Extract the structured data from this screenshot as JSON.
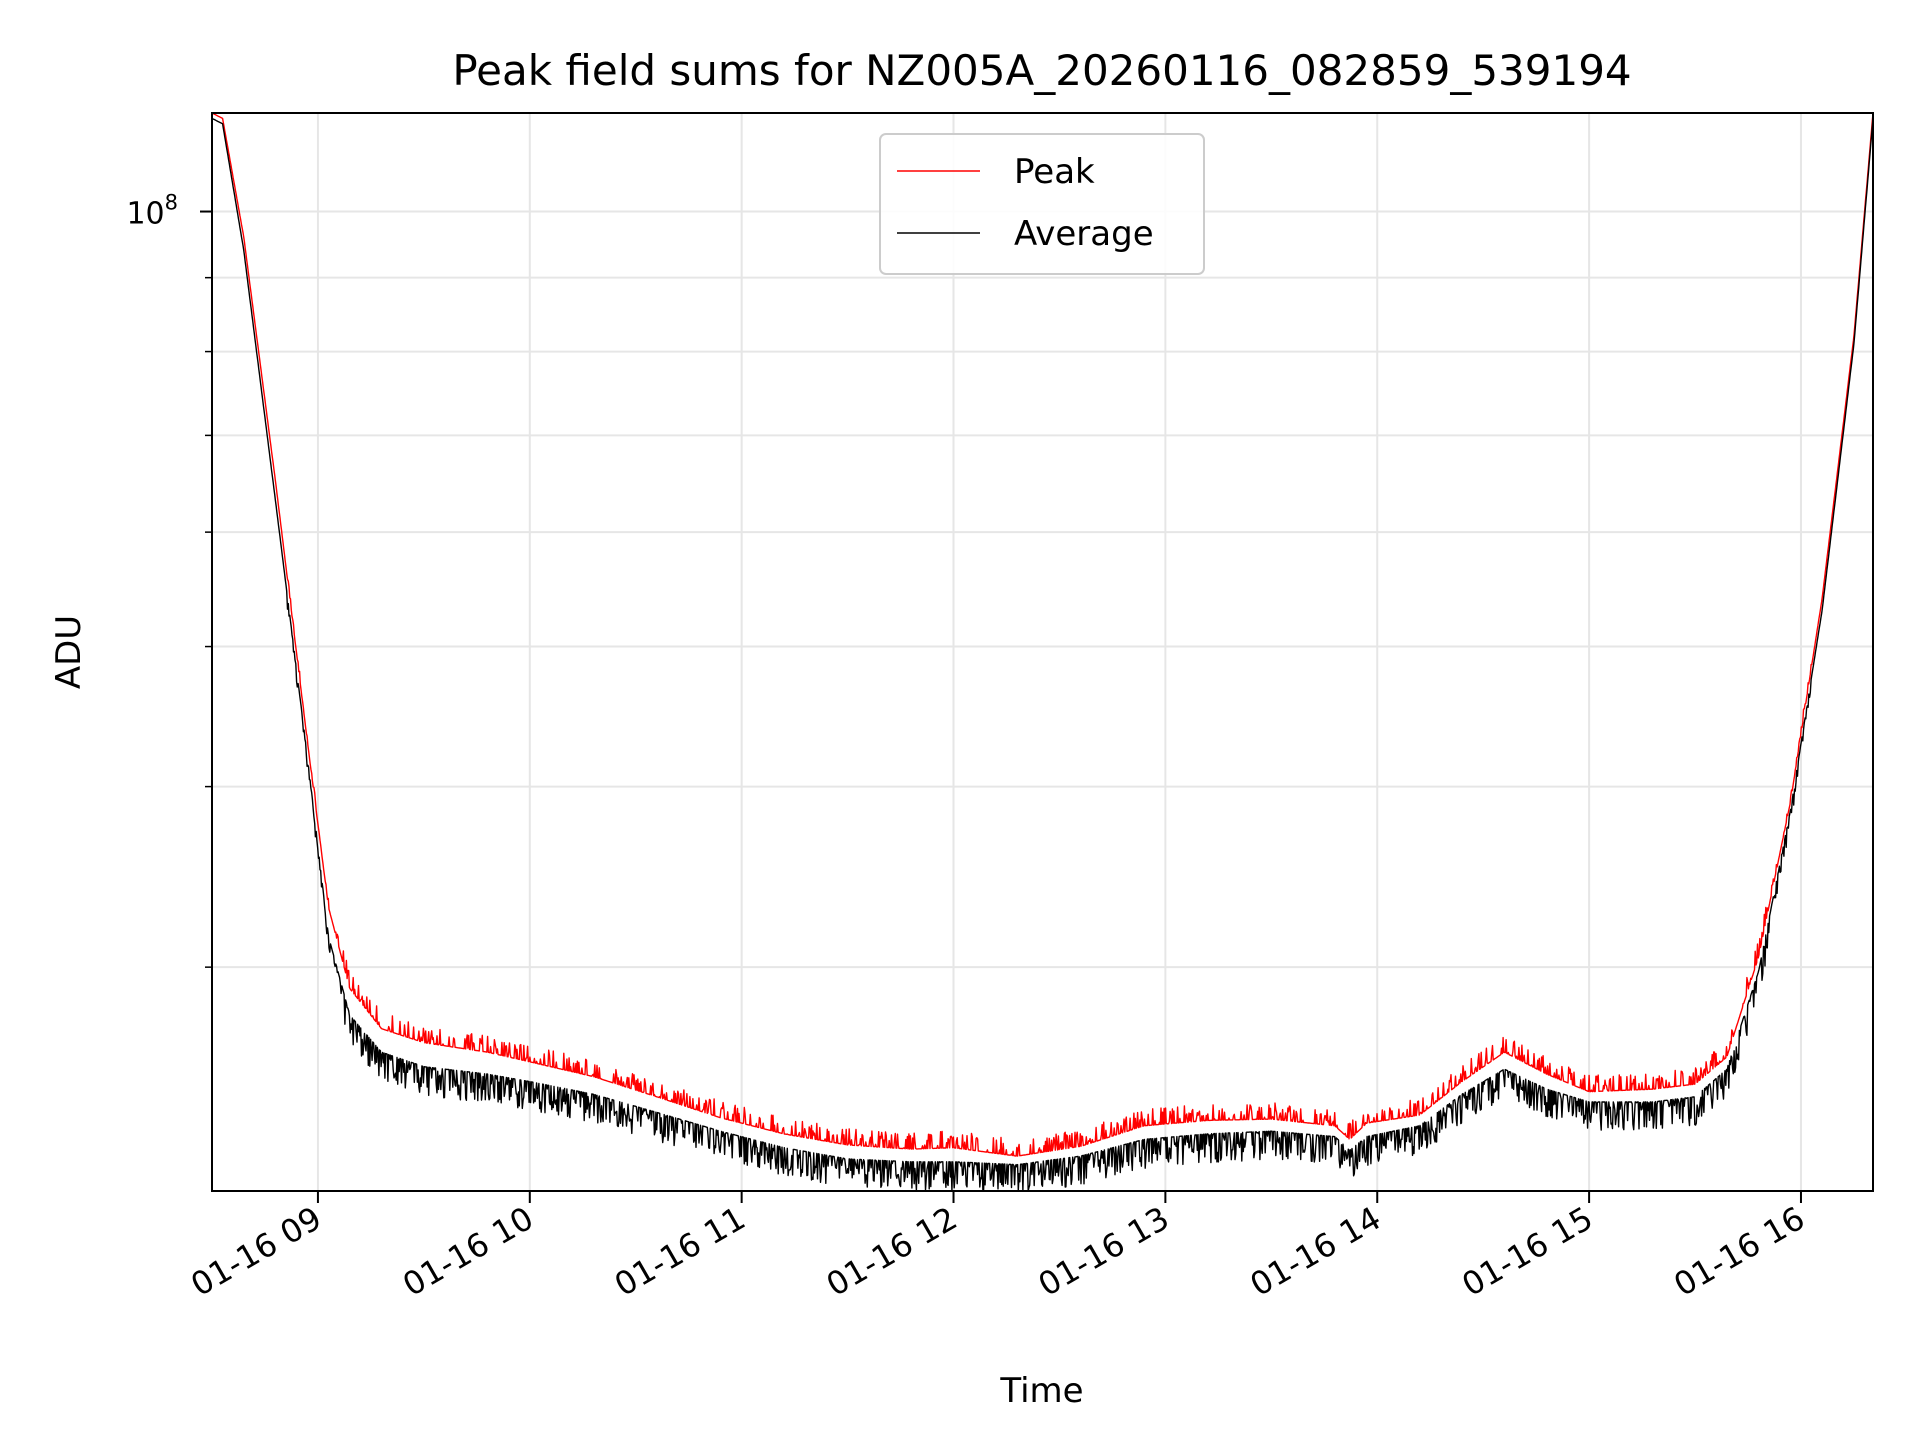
{
  "chart_data": {
    "type": "line",
    "title": "Peak field sums for NZ005A_20260116_082859_539194",
    "xlabel": "Time",
    "ylabel": "ADU",
    "x_unit": "hours since 01-16 08:00",
    "xlim": [
      8.5,
      16.34
    ],
    "yscale": "log",
    "ylim": [
      21000000.0,
      117000000.0
    ],
    "ytick_label": {
      "base": "10",
      "exponent": "8",
      "value": 100000000.0
    },
    "minor_y_ticks": [
      30000000.0,
      40000000.0,
      50000000.0,
      60000000.0,
      70000000.0,
      80000000.0,
      90000000.0
    ],
    "xticks": [
      {
        "value": 9,
        "label": "01-16 09"
      },
      {
        "value": 10,
        "label": "01-16 10"
      },
      {
        "value": 11,
        "label": "01-16 11"
      },
      {
        "value": 12,
        "label": "01-16 12"
      },
      {
        "value": 13,
        "label": "01-16 13"
      },
      {
        "value": 14,
        "label": "01-16 14"
      },
      {
        "value": 15,
        "label": "01-16 15"
      },
      {
        "value": 16,
        "label": "01-16 16"
      }
    ],
    "grid": true,
    "legend": {
      "placement": "upper-center"
    },
    "series": [
      {
        "name": "Peak",
        "color": "#ff0000",
        "noise": "upper",
        "x": [
          8.5,
          8.55,
          8.65,
          8.8,
          8.95,
          9.05,
          9.15,
          9.3,
          9.5,
          9.8,
          10.0,
          10.3,
          10.6,
          10.9,
          11.2,
          11.5,
          11.8,
          12.0,
          12.3,
          12.6,
          12.9,
          13.2,
          13.5,
          13.8,
          13.87,
          13.95,
          14.2,
          14.4,
          14.6,
          14.8,
          15.0,
          15.3,
          15.5,
          15.65,
          15.8,
          15.95,
          16.1,
          16.25,
          16.34
        ],
        "y": [
          117000000.0,
          116000000.0,
          96000000.0,
          65000000.0,
          43000000.0,
          33000000.0,
          29000000.0,
          27200000.0,
          26600000.0,
          26200000.0,
          25800000.0,
          25200000.0,
          24400000.0,
          23600000.0,
          23000000.0,
          22600000.0,
          22450000.0,
          22500000.0,
          22200000.0,
          22550000.0,
          23300000.0,
          23500000.0,
          23550000.0,
          23300000.0,
          22800000.0,
          23400000.0,
          23700000.0,
          25000000.0,
          26200000.0,
          25300000.0,
          24600000.0,
          24700000.0,
          24900000.0,
          26000000.0,
          30500000.0,
          39000000.0,
          54000000.0,
          82000000.0,
          117000000.0
        ]
      },
      {
        "name": "Average",
        "color": "#000000",
        "noise": "lower",
        "x": [
          8.5,
          8.55,
          8.65,
          8.8,
          8.95,
          9.05,
          9.15,
          9.3,
          9.5,
          9.8,
          10.0,
          10.3,
          10.6,
          10.9,
          11.2,
          11.5,
          11.8,
          12.0,
          12.3,
          12.6,
          12.9,
          13.2,
          13.5,
          13.8,
          13.87,
          13.95,
          14.2,
          14.4,
          14.6,
          14.8,
          15.0,
          15.3,
          15.5,
          15.65,
          15.8,
          15.95,
          16.1,
          16.25,
          16.34
        ],
        "y": [
          116000000.0,
          115000000.0,
          94000000.0,
          63000000.0,
          42000000.0,
          31500000.0,
          27800000.0,
          26200000.0,
          25600000.0,
          25300000.0,
          25000000.0,
          24500000.0,
          23800000.0,
          23100000.0,
          22500000.0,
          22100000.0,
          22000000.0,
          22000000.0,
          21900000.0,
          22200000.0,
          22800000.0,
          23000000.0,
          23100000.0,
          22900000.0,
          22400000.0,
          22900000.0,
          23300000.0,
          24500000.0,
          25500000.0,
          24700000.0,
          24200000.0,
          24200000.0,
          24400000.0,
          25500000.0,
          29800000.0,
          38500000.0,
          53000000.0,
          81000000.0,
          116000000.0
        ]
      }
    ]
  }
}
